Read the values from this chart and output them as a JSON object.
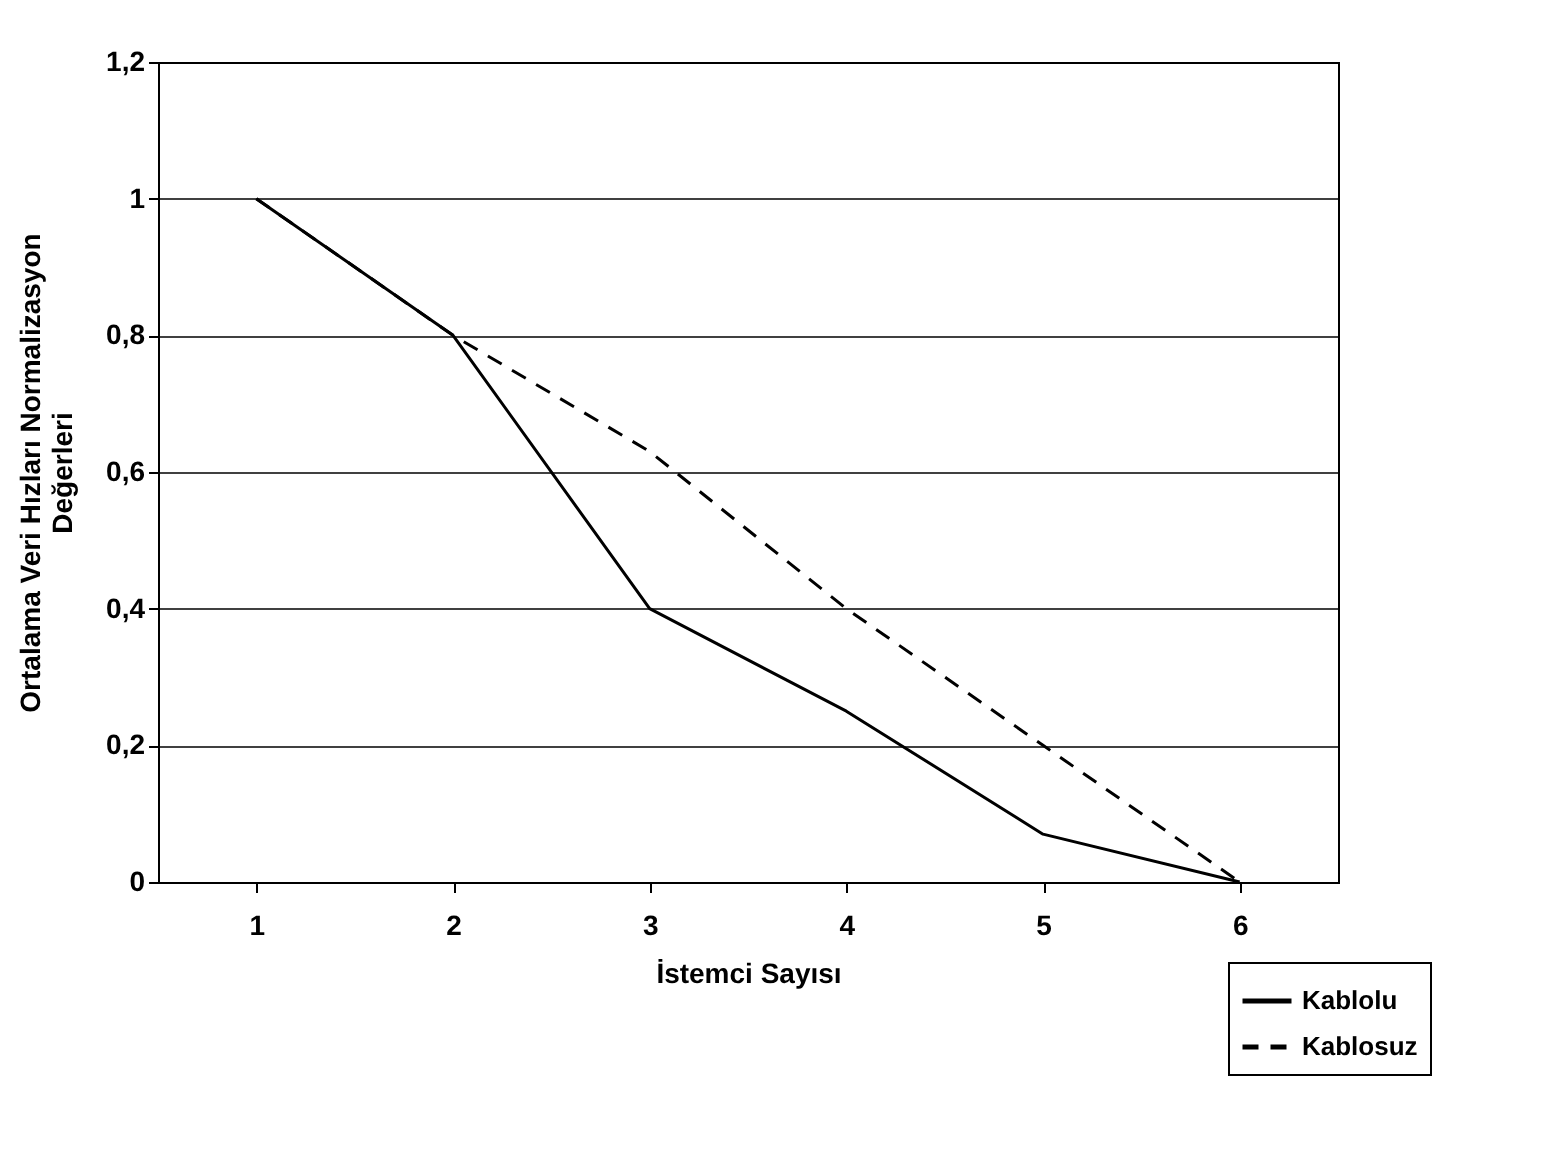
{
  "chart_data": {
    "type": "line",
    "xlabel": "İstemci Sayısı",
    "ylabel": "Ortalama Veri Hızları Normalizasyon Değerleri",
    "categories": [
      "1",
      "2",
      "3",
      "4",
      "5",
      "6"
    ],
    "series": [
      {
        "name": "Kablolu",
        "color": "#000000",
        "line_style": "solid",
        "values": [
          1,
          0.8,
          0.4,
          0.25,
          0.07,
          0
        ]
      },
      {
        "name": "Kablosuz",
        "color": "#000000",
        "line_style": "dashed",
        "values": [
          1,
          0.8,
          0.63,
          0.4,
          0.2,
          0
        ]
      }
    ],
    "ylim": [
      0,
      1.2
    ],
    "yticks": [
      {
        "value": 0,
        "label": "0"
      },
      {
        "value": 0.2,
        "label": "0,2"
      },
      {
        "value": 0.4,
        "label": "0,4"
      },
      {
        "value": 0.6,
        "label": "0,6"
      },
      {
        "value": 0.8,
        "label": "0,8"
      },
      {
        "value": 1,
        "label": "1"
      },
      {
        "value": 1.2,
        "label": "1,2"
      }
    ],
    "grid": "y",
    "legend": "bottom right",
    "marker": "none"
  }
}
